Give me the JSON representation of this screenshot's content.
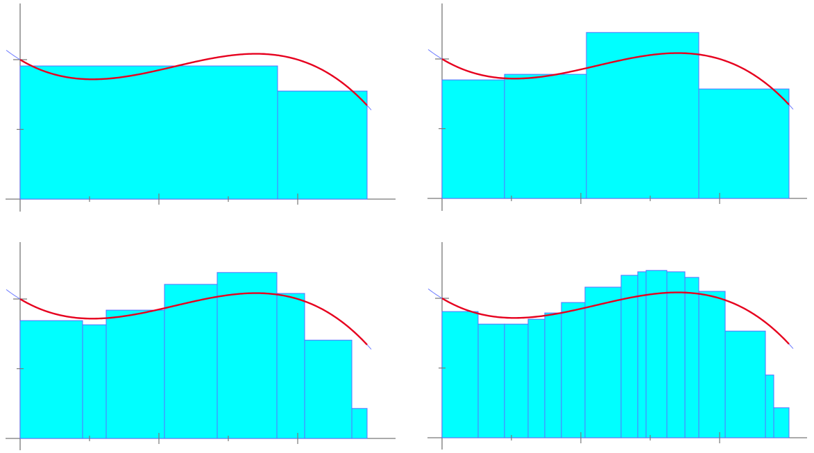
{
  "chart_data": [
    {
      "type": "bar",
      "title": "",
      "xlabel": "",
      "ylabel": "",
      "xlim": [
        -0.02,
        2.1
      ],
      "ylim": [
        -0.09,
        2.5
      ],
      "grid": false,
      "partition": [
        0,
        1.855,
        2.5
      ],
      "heights": [
        1.91,
        1.55
      ],
      "curve": {
        "coeffs": [
          2.0,
          -1.2,
          1.5,
          -0.45
        ],
        "x_range": [
          -0.1,
          2.53
        ]
      },
      "colors": {
        "bar": "#00ffff",
        "bar_edge": "#5b6cff",
        "curve": "#e6001e",
        "axis": "#777777"
      }
    },
    {
      "type": "bar",
      "title": "",
      "xlabel": "",
      "ylabel": "",
      "xlim": [
        -0.02,
        2.1
      ],
      "ylim": [
        -0.09,
        2.5
      ],
      "grid": false,
      "partition": [
        0,
        0.45,
        1.04,
        1.85,
        2.5
      ],
      "heights": [
        1.7,
        1.78,
        2.38,
        1.57
      ],
      "curve": {
        "coeffs": [
          2.0,
          -1.2,
          1.5,
          -0.45
        ],
        "x_range": [
          -0.1,
          2.53
        ]
      },
      "colors": {
        "bar": "#00ffff",
        "bar_edge": "#5b6cff",
        "curve": "#e6001e",
        "axis": "#777777"
      }
    },
    {
      "type": "bar",
      "title": "",
      "xlabel": "",
      "ylabel": "",
      "xlim": [
        -0.02,
        2.1
      ],
      "ylim": [
        -0.09,
        2.5
      ],
      "grid": false,
      "partition": [
        0,
        0.45,
        0.62,
        1.04,
        1.42,
        1.85,
        2.05,
        2.39,
        2.5
      ],
      "heights": [
        1.69,
        1.63,
        1.84,
        2.21,
        2.38,
        2.08,
        1.41,
        0.43
      ],
      "curve": {
        "coeffs": [
          2.0,
          -1.2,
          1.5,
          -0.45
        ],
        "x_range": [
          -0.1,
          2.53
        ]
      },
      "colors": {
        "bar": "#00ffff",
        "bar_edge": "#5b6cff",
        "curve": "#e6001e",
        "axis": "#777777"
      }
    },
    {
      "type": "bar",
      "title": "",
      "xlabel": "",
      "ylabel": "",
      "xlim": [
        -0.02,
        2.1
      ],
      "ylim": [
        -0.09,
        2.5
      ],
      "grid": false,
      "partition": [
        0,
        0.26,
        0.45,
        0.62,
        0.74,
        0.86,
        1.03,
        1.29,
        1.41,
        1.47,
        1.62,
        1.75,
        1.85,
        2.04,
        2.33,
        2.39,
        2.5
      ],
      "heights": [
        1.81,
        1.63,
        1.63,
        1.7,
        1.79,
        1.94,
        2.16,
        2.33,
        2.38,
        2.4,
        2.38,
        2.3,
        2.1,
        1.53,
        0.9,
        0.43
      ],
      "curve": {
        "coeffs": [
          2.0,
          -1.2,
          1.5,
          -0.45
        ],
        "x_range": [
          -0.1,
          2.53
        ]
      },
      "colors": {
        "bar": "#00ffff",
        "bar_edge": "#5b6cff",
        "curve": "#e6001e",
        "axis": "#777777"
      }
    }
  ]
}
